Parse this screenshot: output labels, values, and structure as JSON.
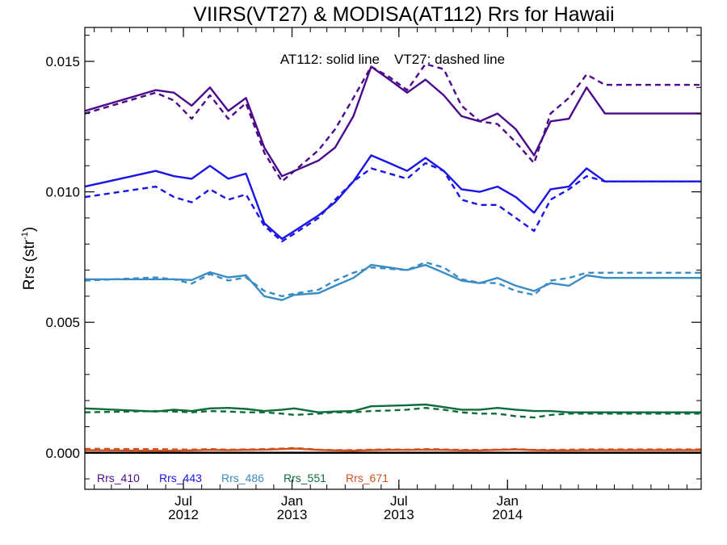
{
  "chart_data": {
    "type": "line",
    "title": "VIIRS(VT27) & MODISA(AT112)  Rrs for Hawaii",
    "ylabel": "Rrs (str",
    "ylabel_sup": "-1",
    "ylabel_close": ")",
    "xlabel": "",
    "annotation_solid": "AT112: solid line",
    "annotation_dashed": "VT27: dashed line",
    "xlim": [
      "2012-01-16",
      "2014-11-25"
    ],
    "ylim": [
      -0.0014,
      0.0163
    ],
    "yticks": [
      {
        "value": 0.0,
        "label": "0.000"
      },
      {
        "value": 0.005,
        "label": "0.005"
      },
      {
        "value": 0.01,
        "label": "0.010"
      },
      {
        "value": 0.015,
        "label": "0.015"
      }
    ],
    "xticks": [
      {
        "date": "2012-07-01",
        "label_month": "Jul",
        "label_year": "2012"
      },
      {
        "date": "2013-01-01",
        "label_month": "Jan",
        "label_year": "2013"
      },
      {
        "date": "2013-07-01",
        "label_month": "Jul",
        "label_year": "2013"
      },
      {
        "date": "2014-01-01",
        "label_month": "Jan",
        "label_year": "2014"
      }
    ],
    "zero_line": true,
    "grid": false,
    "legend_position": "bottom-left",
    "series": [
      {
        "name": "Rrs_410",
        "color": "#4b0a8c",
        "solid": {
          "x": [
            "2012-01-16",
            "2012-05-15",
            "2012-06-15",
            "2012-07-15",
            "2012-08-15",
            "2012-09-15",
            "2012-10-15",
            "2012-11-15",
            "2012-12-15",
            "2013-01-05",
            "2013-02-15",
            "2013-03-15",
            "2013-04-15",
            "2013-05-15",
            "2013-06-15",
            "2013-07-15",
            "2013-08-15",
            "2013-09-15",
            "2013-10-15",
            "2013-11-15",
            "2013-12-15",
            "2014-01-15",
            "2014-02-15",
            "2014-03-15",
            "2014-04-15",
            "2014-05-15",
            "2014-06-15",
            "2014-07-15",
            "2014-08-15",
            "2014-09-15",
            "2014-10-15",
            "2014-11-25"
          ],
          "y": [
            0.0131,
            0.0139,
            0.0138,
            0.0133,
            0.014,
            0.0131,
            0.0136,
            0.0117,
            0.0106,
            0.0108,
            0.0112,
            0.0117,
            0.0129,
            0.0148,
            0.0143,
            0.0138,
            0.0143,
            0.0137,
            0.0129,
            0.0127,
            0.013,
            0.0124,
            0.0114,
            0.0127,
            0.0128,
            0.014,
            0.013,
            0.013,
            0.013,
            0.013,
            0.013,
            0.013
          ]
        },
        "dashed": {
          "x": [
            "2012-01-16",
            "2012-05-15",
            "2012-06-15",
            "2012-07-15",
            "2012-08-15",
            "2012-09-15",
            "2012-10-15",
            "2012-11-15",
            "2012-12-15",
            "2013-01-05",
            "2013-02-15",
            "2013-03-15",
            "2013-04-15",
            "2013-05-15",
            "2013-06-15",
            "2013-07-15",
            "2013-08-15",
            "2013-09-15",
            "2013-10-15",
            "2013-11-15",
            "2013-12-15",
            "2014-01-15",
            "2014-02-15",
            "2014-03-15",
            "2014-04-15",
            "2014-05-15",
            "2014-06-15",
            "2014-07-15",
            "2014-08-15",
            "2014-09-15",
            "2014-10-15",
            "2014-11-25"
          ],
          "y": [
            0.013,
            0.0138,
            0.0135,
            0.0128,
            0.0137,
            0.0128,
            0.0134,
            0.0115,
            0.0104,
            0.0108,
            0.0116,
            0.0124,
            0.0136,
            0.0148,
            0.0144,
            0.0139,
            0.0149,
            0.0147,
            0.0133,
            0.0127,
            0.0126,
            0.0119,
            0.0111,
            0.013,
            0.0136,
            0.0145,
            0.0141,
            0.0141,
            0.0141,
            0.0141,
            0.0141,
            0.0141
          ]
        }
      },
      {
        "name": "Rrs_443",
        "color": "#1a14e6",
        "solid": {
          "x": [
            "2012-01-16",
            "2012-05-15",
            "2012-06-15",
            "2012-07-15",
            "2012-08-15",
            "2012-09-15",
            "2012-10-15",
            "2012-11-15",
            "2012-12-15",
            "2013-01-05",
            "2013-02-15",
            "2013-03-15",
            "2013-04-15",
            "2013-05-15",
            "2013-06-15",
            "2013-07-15",
            "2013-08-15",
            "2013-09-15",
            "2013-10-15",
            "2013-11-15",
            "2013-12-15",
            "2014-01-15",
            "2014-02-15",
            "2014-03-15",
            "2014-04-15",
            "2014-05-15",
            "2014-06-15",
            "2014-07-15",
            "2014-08-15",
            "2014-09-15",
            "2014-10-15",
            "2014-11-25"
          ],
          "y": [
            0.0102,
            0.0108,
            0.0106,
            0.0105,
            0.011,
            0.0105,
            0.0107,
            0.0088,
            0.0082,
            0.0085,
            0.0091,
            0.0096,
            0.0104,
            0.0114,
            0.0111,
            0.0108,
            0.0113,
            0.0108,
            0.0101,
            0.01,
            0.0102,
            0.0098,
            0.0092,
            0.0101,
            0.0102,
            0.0109,
            0.0104,
            0.0104,
            0.0104,
            0.0104,
            0.0104,
            0.0104
          ]
        },
        "dashed": {
          "x": [
            "2012-01-16",
            "2012-05-15",
            "2012-06-15",
            "2012-07-15",
            "2012-08-15",
            "2012-09-15",
            "2012-10-15",
            "2012-11-15",
            "2012-12-15",
            "2013-01-05",
            "2013-02-15",
            "2013-03-15",
            "2013-04-15",
            "2013-05-15",
            "2013-06-15",
            "2013-07-15",
            "2013-08-15",
            "2013-09-15",
            "2013-10-15",
            "2013-11-15",
            "2013-12-15",
            "2014-01-15",
            "2014-02-15",
            "2014-03-15",
            "2014-04-15",
            "2014-05-15",
            "2014-06-15",
            "2014-07-15",
            "2014-08-15",
            "2014-09-15",
            "2014-10-15",
            "2014-11-25"
          ],
          "y": [
            0.0098,
            0.0102,
            0.0098,
            0.0096,
            0.0101,
            0.0097,
            0.0099,
            0.0087,
            0.0081,
            0.0084,
            0.009,
            0.0097,
            0.0104,
            0.0109,
            0.0107,
            0.0105,
            0.0111,
            0.0108,
            0.0097,
            0.0095,
            0.0095,
            0.009,
            0.0085,
            0.0097,
            0.0101,
            0.0106,
            0.0104,
            0.0104,
            0.0104,
            0.0104,
            0.0104,
            0.0104
          ]
        }
      },
      {
        "name": "Rrs_486",
        "color": "#3a8cc4",
        "solid": {
          "x": [
            "2012-01-16",
            "2012-05-15",
            "2012-06-15",
            "2012-07-15",
            "2012-08-15",
            "2012-09-15",
            "2012-10-15",
            "2012-11-15",
            "2012-12-15",
            "2013-01-05",
            "2013-02-15",
            "2013-03-15",
            "2013-04-15",
            "2013-05-15",
            "2013-06-15",
            "2013-07-15",
            "2013-08-15",
            "2013-09-15",
            "2013-10-15",
            "2013-11-15",
            "2013-12-15",
            "2014-01-15",
            "2014-02-15",
            "2014-03-15",
            "2014-04-15",
            "2014-05-15",
            "2014-06-15",
            "2014-07-15",
            "2014-08-15",
            "2014-09-15",
            "2014-10-15",
            "2014-11-25"
          ],
          "y": [
            0.00665,
            0.00665,
            0.00665,
            0.00662,
            0.00692,
            0.00672,
            0.0068,
            0.006,
            0.00585,
            0.00605,
            0.00612,
            0.0064,
            0.0067,
            0.0072,
            0.0071,
            0.007,
            0.0072,
            0.0069,
            0.0066,
            0.0065,
            0.0067,
            0.0064,
            0.0062,
            0.0065,
            0.0064,
            0.0068,
            0.0067,
            0.0067,
            0.0067,
            0.0067,
            0.0067,
            0.0067
          ]
        },
        "dashed": {
          "x": [
            "2012-01-16",
            "2012-05-15",
            "2012-06-15",
            "2012-07-15",
            "2012-08-15",
            "2012-09-15",
            "2012-10-15",
            "2012-11-15",
            "2012-12-15",
            "2013-01-05",
            "2013-02-15",
            "2013-03-15",
            "2013-04-15",
            "2013-05-15",
            "2013-06-15",
            "2013-07-15",
            "2013-08-15",
            "2013-09-15",
            "2013-10-15",
            "2013-11-15",
            "2013-12-15",
            "2014-01-15",
            "2014-02-15",
            "2014-03-15",
            "2014-04-15",
            "2014-05-15",
            "2014-06-15",
            "2014-07-15",
            "2014-08-15",
            "2014-09-15",
            "2014-10-15",
            "2014-11-25"
          ],
          "y": [
            0.0066,
            0.00672,
            0.00665,
            0.00648,
            0.00685,
            0.0066,
            0.00672,
            0.0062,
            0.006,
            0.0061,
            0.00625,
            0.0066,
            0.0069,
            0.0071,
            0.00705,
            0.007,
            0.0073,
            0.0071,
            0.00665,
            0.00652,
            0.0065,
            0.0062,
            0.00605,
            0.0066,
            0.0067,
            0.0069,
            0.0069,
            0.0069,
            0.0069,
            0.0069,
            0.0069,
            0.0069
          ]
        }
      },
      {
        "name": "Rrs_551",
        "color": "#0e6b3a",
        "solid": {
          "x": [
            "2012-01-16",
            "2012-05-15",
            "2012-06-15",
            "2012-07-15",
            "2012-08-15",
            "2012-09-15",
            "2012-10-15",
            "2012-11-15",
            "2012-12-15",
            "2013-01-05",
            "2013-02-15",
            "2013-03-15",
            "2013-04-15",
            "2013-05-15",
            "2013-06-15",
            "2013-07-15",
            "2013-08-15",
            "2013-09-15",
            "2013-10-15",
            "2013-11-15",
            "2013-12-15",
            "2014-01-15",
            "2014-02-15",
            "2014-03-15",
            "2014-04-15",
            "2014-05-15",
            "2014-06-15",
            "2014-07-15",
            "2014-08-15",
            "2014-09-15",
            "2014-10-15",
            "2014-11-25"
          ],
          "y": [
            0.0017,
            0.00158,
            0.00165,
            0.0016,
            0.0017,
            0.00172,
            0.00168,
            0.0016,
            0.00165,
            0.0017,
            0.00155,
            0.00158,
            0.0016,
            0.00178,
            0.0018,
            0.00182,
            0.00185,
            0.00175,
            0.00165,
            0.00165,
            0.00172,
            0.00165,
            0.0016,
            0.0016,
            0.00155,
            0.00155,
            0.00155,
            0.00155,
            0.00155,
            0.00155,
            0.00155,
            0.00155
          ]
        },
        "dashed": {
          "x": [
            "2012-01-16",
            "2012-05-15",
            "2012-06-15",
            "2012-07-15",
            "2012-08-15",
            "2012-09-15",
            "2012-10-15",
            "2012-11-15",
            "2012-12-15",
            "2013-01-05",
            "2013-02-15",
            "2013-03-15",
            "2013-04-15",
            "2013-05-15",
            "2013-06-15",
            "2013-07-15",
            "2013-08-15",
            "2013-09-15",
            "2013-10-15",
            "2013-11-15",
            "2013-12-15",
            "2014-01-15",
            "2014-02-15",
            "2014-03-15",
            "2014-04-15",
            "2014-05-15",
            "2014-06-15",
            "2014-07-15",
            "2014-08-15",
            "2014-09-15",
            "2014-10-15",
            "2014-11-25"
          ],
          "y": [
            0.00155,
            0.0016,
            0.00158,
            0.00155,
            0.0016,
            0.00158,
            0.00155,
            0.00155,
            0.0015,
            0.00145,
            0.0015,
            0.00155,
            0.00155,
            0.0016,
            0.00162,
            0.00165,
            0.00172,
            0.00165,
            0.00155,
            0.0015,
            0.0015,
            0.0014,
            0.00135,
            0.00145,
            0.0015,
            0.0015,
            0.0015,
            0.0015,
            0.0015,
            0.0015,
            0.0015,
            0.0015
          ]
        }
      },
      {
        "name": "Rrs_671",
        "color": "#d2501e",
        "solid": {
          "x": [
            "2012-01-16",
            "2012-05-15",
            "2012-06-15",
            "2012-07-15",
            "2012-08-15",
            "2012-09-15",
            "2012-10-15",
            "2012-11-15",
            "2012-12-15",
            "2013-01-05",
            "2013-02-15",
            "2013-03-15",
            "2013-04-15",
            "2013-05-15",
            "2013-06-15",
            "2013-07-15",
            "2013-08-15",
            "2013-09-15",
            "2013-10-15",
            "2013-11-15",
            "2013-12-15",
            "2014-01-15",
            "2014-02-15",
            "2014-03-15",
            "2014-04-15",
            "2014-05-15",
            "2014-06-15",
            "2014-07-15",
            "2014-08-15",
            "2014-09-15",
            "2014-10-15",
            "2014-11-25"
          ],
          "y": [
            0.0001,
            8e-05,
            8e-05,
            9e-05,
            0.00011,
            0.0001,
            0.00011,
            0.00012,
            0.00014,
            0.00016,
            0.00011,
            9e-05,
            8e-05,
            0.0001,
            0.00011,
            0.00011,
            0.00012,
            0.00011,
            9e-05,
            9e-05,
            0.00011,
            0.00013,
            0.0001,
            9e-05,
            9e-05,
            0.0001,
            0.0001,
            0.0001,
            0.0001,
            0.0001,
            0.0001,
            0.0001
          ]
        },
        "dashed": {
          "x": [
            "2012-01-16",
            "2012-05-15",
            "2012-06-15",
            "2012-07-15",
            "2012-08-15",
            "2012-09-15",
            "2012-10-15",
            "2012-11-15",
            "2012-12-15",
            "2013-01-05",
            "2013-02-15",
            "2013-03-15",
            "2013-04-15",
            "2013-05-15",
            "2013-06-15",
            "2013-07-15",
            "2013-08-15",
            "2013-09-15",
            "2013-10-15",
            "2013-11-15",
            "2013-12-15",
            "2014-01-15",
            "2014-02-15",
            "2014-03-15",
            "2014-04-15",
            "2014-05-15",
            "2014-06-15",
            "2014-07-15",
            "2014-08-15",
            "2014-09-15",
            "2014-10-15",
            "2014-11-25"
          ],
          "y": [
            0.00015,
            0.00014,
            0.00013,
            0.00012,
            0.00014,
            0.00012,
            0.00013,
            0.00014,
            0.00016,
            0.00018,
            0.00012,
            0.0001,
            0.0001,
            0.00012,
            0.00013,
            0.00012,
            0.00014,
            0.00013,
            0.00011,
            0.00011,
            0.00012,
            0.00014,
            0.00011,
            0.00011,
            0.00012,
            0.00013,
            0.00013,
            0.00013,
            0.00013,
            0.00013,
            0.00013,
            0.00013
          ]
        }
      }
    ]
  }
}
